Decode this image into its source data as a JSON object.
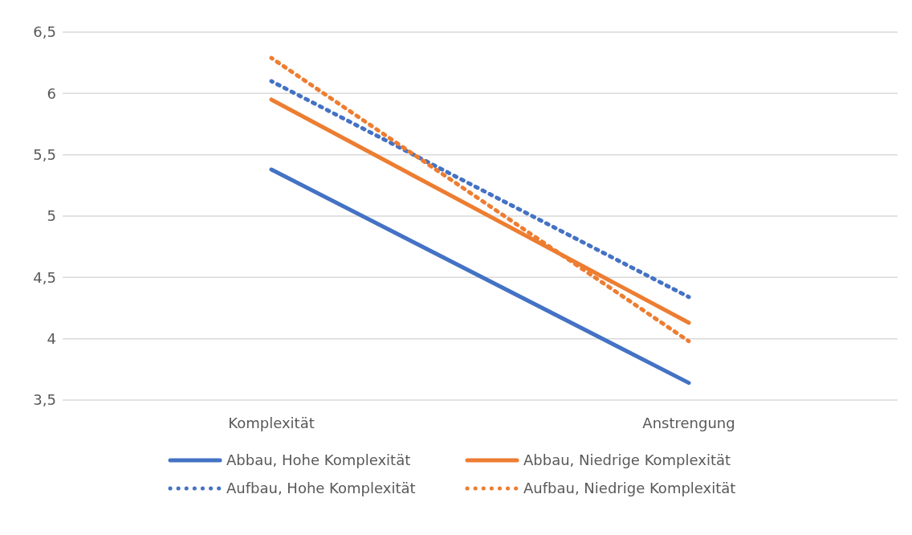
{
  "chart_data": {
    "type": "line",
    "categories": [
      "Komplexität",
      "Anstrengung"
    ],
    "series": [
      {
        "name": "Abbau, Hohe Komplexität",
        "color": "#4472c4",
        "values": [
          5.38,
          3.64
        ],
        "line_style": "solid"
      },
      {
        "name": "Abbau, Niedrige Komplexität",
        "color": "#ed7d31",
        "values": [
          5.95,
          4.13
        ],
        "line_style": "solid"
      },
      {
        "name": "Aufbau, Hohe Komplexität",
        "color": "#4472c4",
        "values": [
          6.1,
          4.34
        ],
        "line_style": "dotted"
      },
      {
        "name": "Aufbau, Niedrige Komplexität",
        "color": "#ed7d31",
        "values": [
          6.29,
          3.98
        ],
        "line_style": "dotted"
      }
    ],
    "ylim": [
      3.5,
      6.5
    ],
    "yticks": [
      {
        "value": 3.5,
        "label": "3,5"
      },
      4,
      {
        "value": 4.5,
        "label": "4,5"
      },
      5,
      {
        "value": 5.5,
        "label": "5,5"
      },
      6,
      {
        "value": 6.5,
        "label": "6,5"
      }
    ],
    "grid": "y",
    "legend": "bottom",
    "marker": "none"
  }
}
